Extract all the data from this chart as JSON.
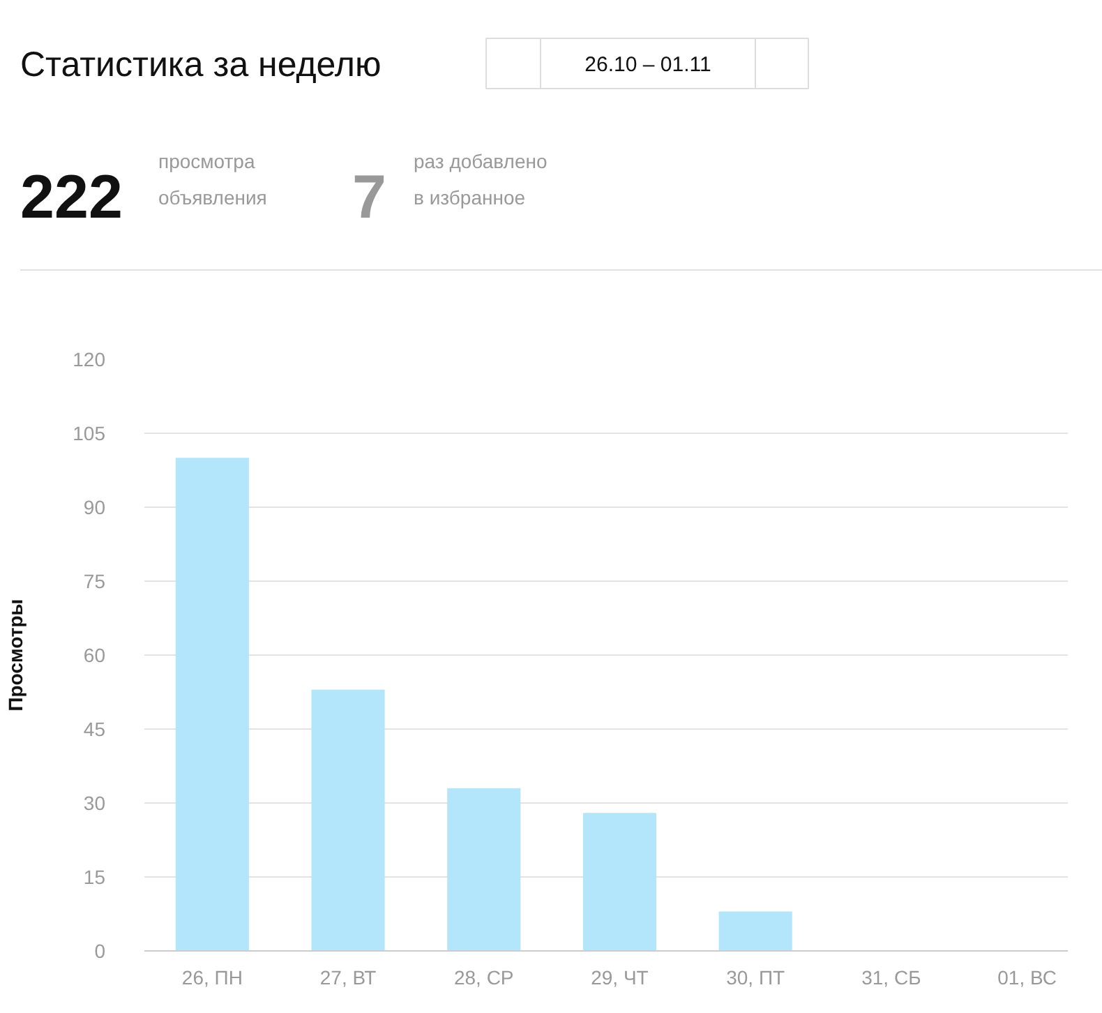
{
  "chart_data": {
    "type": "bar",
    "title": "Статистика за неделю",
    "subtitle": "26.10 – 01.11",
    "annotations": [
      "222",
      "просмотра\nобъявления",
      "7",
      "раз добавлено\nв избранное"
    ],
    "ylabel": "Просмотры",
    "categories": [
      "26, ПН",
      "27, ВТ",
      "28, СР",
      "29, ЧТ",
      "30, ПТ",
      "31, СБ",
      "01, ВС"
    ],
    "values": [
      100,
      53,
      33,
      28,
      8,
      null,
      null
    ],
    "color": "#b3e5fb",
    "ylim": [
      0,
      120
    ],
    "yticks": [
      0,
      15,
      30,
      45,
      60,
      75,
      90,
      105,
      120
    ],
    "grid": "y"
  }
}
